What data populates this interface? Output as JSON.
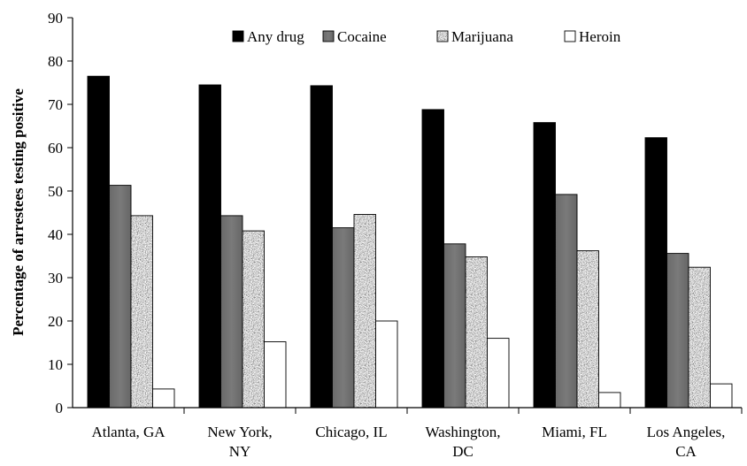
{
  "chart_data": {
    "type": "bar",
    "title": "",
    "xlabel": "",
    "ylabel": "Percentage of arrestees testing positive",
    "ylim": [
      0,
      90
    ],
    "yticks": [
      0,
      10,
      20,
      30,
      40,
      50,
      60,
      70,
      80,
      90
    ],
    "grid": false,
    "legend_position": "top",
    "categories": [
      [
        "Atlanta, GA"
      ],
      [
        "New York,",
        "NY"
      ],
      [
        "Chicago, IL"
      ],
      [
        "Washington,",
        "DC"
      ],
      [
        "Miami, FL"
      ],
      [
        "Los Angeles,",
        "CA"
      ]
    ],
    "series": [
      {
        "name": "Any drug",
        "pattern": "solid-black",
        "values": [
          76.5,
          74.5,
          74.3,
          68.8,
          65.8,
          62.3
        ]
      },
      {
        "name": "Cocaine",
        "pattern": "solid-gray",
        "values": [
          51.3,
          44.3,
          41.5,
          37.8,
          49.2,
          35.6
        ]
      },
      {
        "name": "Marijuana",
        "pattern": "speckled",
        "values": [
          44.3,
          40.8,
          44.6,
          34.8,
          36.2,
          32.4
        ]
      },
      {
        "name": "Heroin",
        "pattern": "white",
        "values": [
          4.3,
          15.2,
          20.0,
          16.0,
          3.5,
          5.5
        ]
      }
    ]
  }
}
